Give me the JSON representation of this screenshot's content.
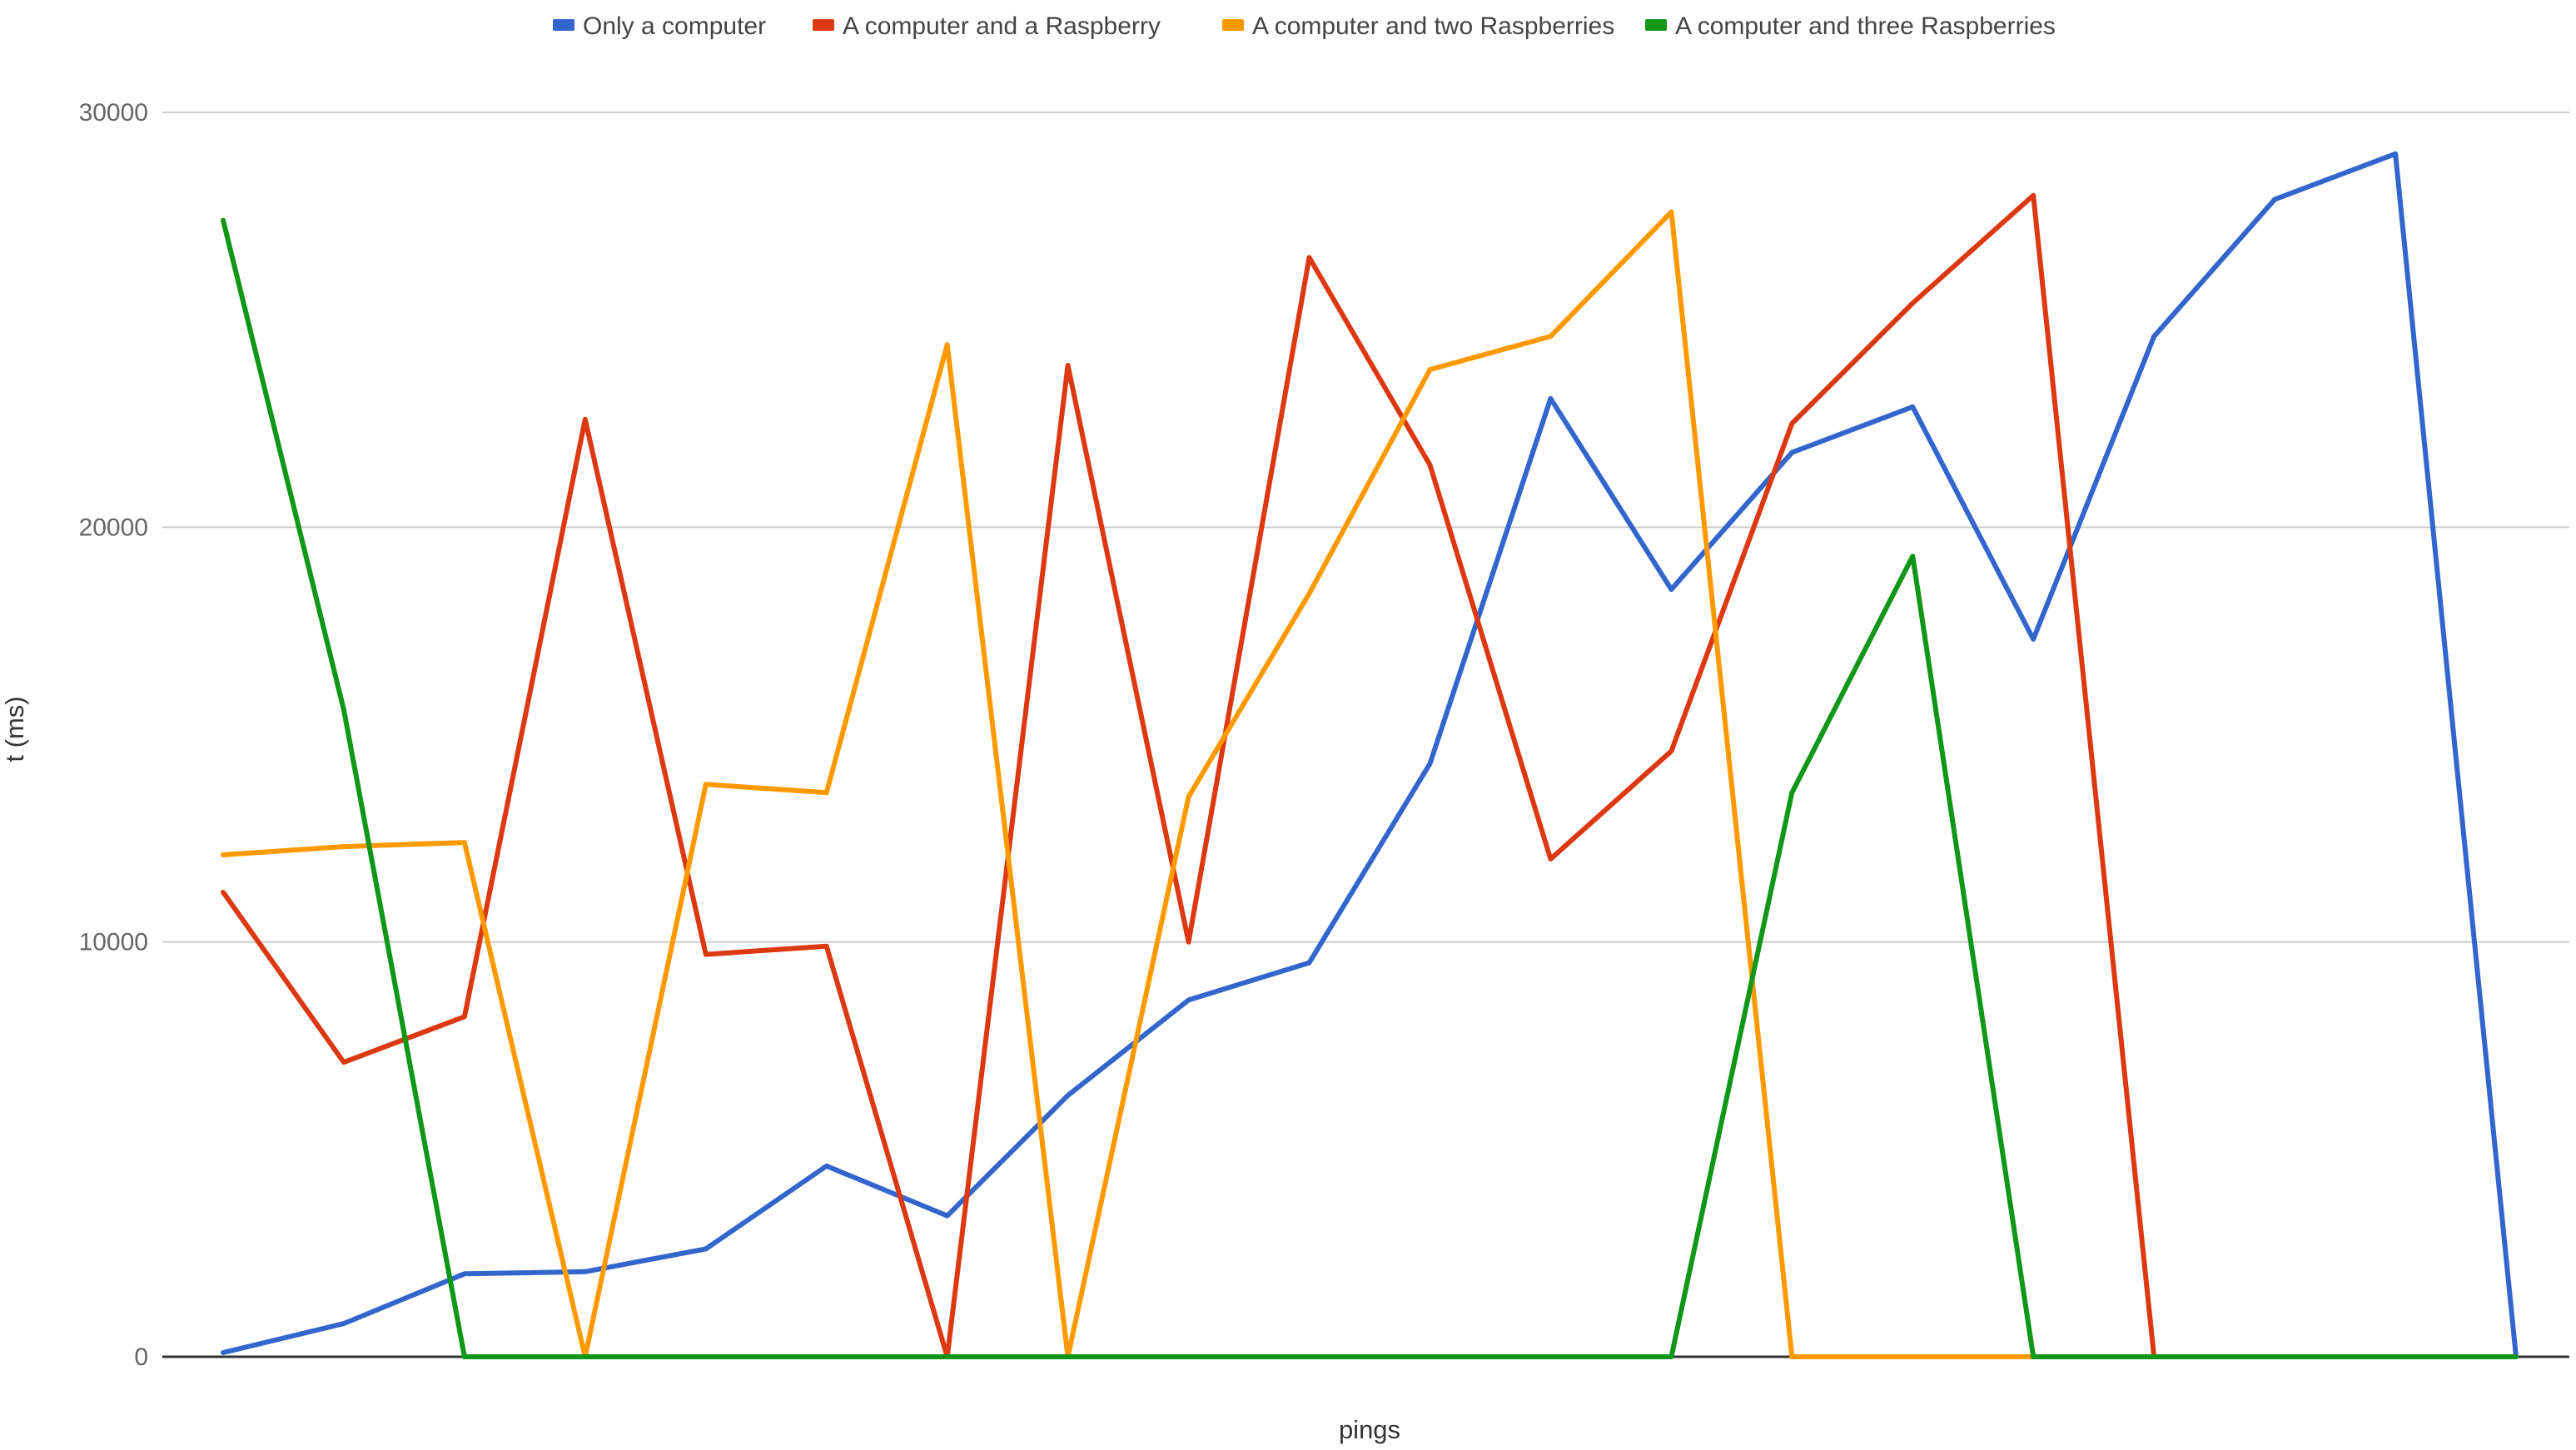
{
  "chart_data": {
    "type": "line",
    "title": "",
    "xlabel": "pings",
    "ylabel": "t (ms)",
    "ylim": [
      0,
      30000
    ],
    "yticks": [
      0,
      10000,
      20000,
      30000
    ],
    "grid": true,
    "legend": "top-center",
    "x": [
      1,
      2,
      3,
      4,
      5,
      6,
      7,
      8,
      9,
      10,
      11,
      12,
      13,
      14,
      15,
      16,
      17,
      18,
      19,
      20
    ],
    "series": [
      {
        "name": "Only a computer",
        "color": "#3366cc",
        "values": [
          100,
          800,
          2000,
          2050,
          2600,
          4600,
          3400,
          6300,
          8600,
          9500,
          14300,
          23100,
          18500,
          21800,
          22900,
          17300,
          24600,
          27900,
          29000,
          0
        ]
      },
      {
        "name": "A computer and a Raspberry",
        "color": "#dc3912",
        "values": [
          11200,
          7100,
          8200,
          22600,
          9700,
          9900,
          0,
          23900,
          10000,
          26500,
          21500,
          12000,
          14600,
          22500,
          25400,
          28000,
          0,
          null,
          null,
          null
        ]
      },
      {
        "name": "A computer and two Raspberries",
        "color": "#ff9900",
        "values": [
          12100,
          12300,
          12400,
          0,
          13800,
          13600,
          24400,
          0,
          13500,
          18400,
          23800,
          24600,
          27600,
          0,
          0,
          0,
          null,
          null,
          null,
          null
        ]
      },
      {
        "name": "A computer and three Raspberries",
        "color": "#109618",
        "values": [
          27400,
          15600,
          0,
          0,
          0,
          0,
          0,
          0,
          0,
          0,
          0,
          0,
          0,
          13600,
          19300,
          0,
          0,
          0,
          0,
          0
        ]
      }
    ]
  }
}
